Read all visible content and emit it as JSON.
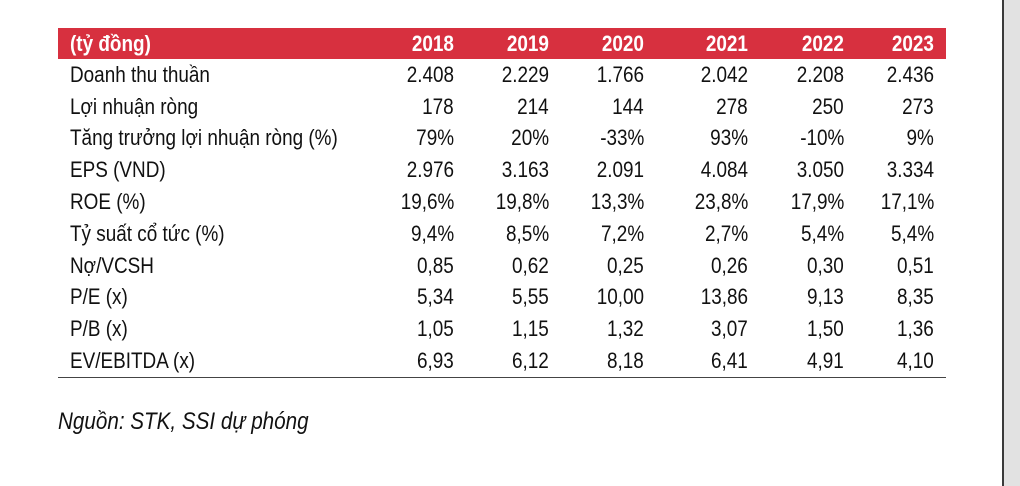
{
  "table": {
    "header": {
      "label": "(tỷ đồng)",
      "years": [
        "2018",
        "2019",
        "2020",
        "2021",
        "2022",
        "2023"
      ]
    },
    "rows": [
      {
        "label": "Doanh thu thuần",
        "values": [
          "2.408",
          "2.229",
          "1.766",
          "2.042",
          "2.208",
          "2.436"
        ]
      },
      {
        "label": "Lợi nhuận ròng",
        "values": [
          "178",
          "214",
          "144",
          "278",
          "250",
          "273"
        ]
      },
      {
        "label": "Tăng trưởng lợi nhuận ròng (%)",
        "values": [
          "79%",
          "20%",
          "-33%",
          "93%",
          "-10%",
          "9%"
        ]
      },
      {
        "label": "EPS (VND)",
        "values": [
          "2.976",
          "3.163",
          "2.091",
          "4.084",
          "3.050",
          "3.334"
        ]
      },
      {
        "label": "ROE (%)",
        "values": [
          "19,6%",
          "19,8%",
          "13,3%",
          "23,8%",
          "17,9%",
          "17,1%"
        ]
      },
      {
        "label": "Tỷ suất cổ tức (%)",
        "values": [
          "9,4%",
          "8,5%",
          "7,2%",
          "2,7%",
          "5,4%",
          "5,4%"
        ]
      },
      {
        "label": "Nợ/VCSH",
        "values": [
          "0,85",
          "0,62",
          "0,25",
          "0,26",
          "0,30",
          "0,51"
        ]
      },
      {
        "label": "P/E (x)",
        "values": [
          "5,34",
          "5,55",
          "10,00",
          "13,86",
          "9,13",
          "8,35"
        ]
      },
      {
        "label": "P/B (x)",
        "values": [
          "1,05",
          "1,15",
          "1,32",
          "3,07",
          "1,50",
          "1,36"
        ]
      },
      {
        "label": "EV/EBITDA (x)",
        "values": [
          "6,93",
          "6,12",
          "8,18",
          "6,41",
          "4,91",
          "4,10"
        ]
      }
    ]
  },
  "source_note": "Nguồn: STK, SSI dự phóng",
  "colors": {
    "header_background": "#d7303f",
    "header_text": "#ffffff",
    "body_text": "#111111"
  }
}
